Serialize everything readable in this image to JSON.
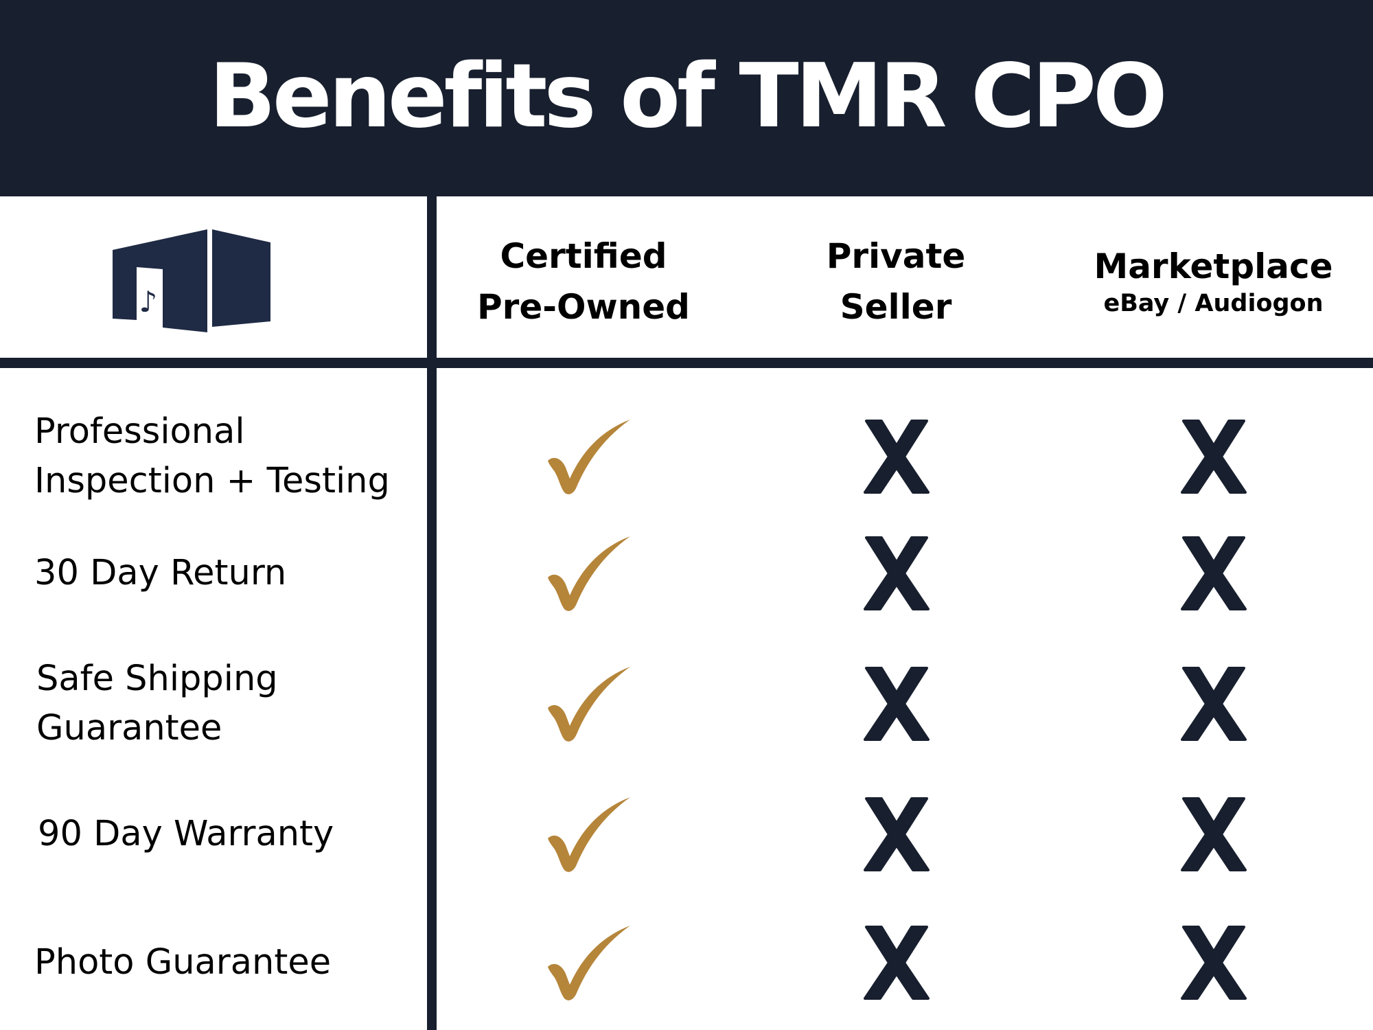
{
  "header": {
    "title": "Benefits of TMR CPO"
  },
  "logo": {
    "icon": "music-building-logo",
    "glyph": "♪"
  },
  "columns": [
    {
      "line1": "Certified",
      "line2": "Pre-Owned"
    },
    {
      "line1": "Private",
      "line2": "Seller"
    },
    {
      "main": "Marketplace",
      "sub": "eBay / Audiogon"
    }
  ],
  "rows": [
    {
      "feature": [
        "Professional",
        "Inspection + Testing"
      ],
      "marks": [
        "check",
        "x",
        "x"
      ]
    },
    {
      "feature": [
        "30 Day Return"
      ],
      "marks": [
        "check",
        "x",
        "x"
      ]
    },
    {
      "feature": [
        "Safe Shipping",
        "Guarantee"
      ],
      "marks": [
        "check",
        "x",
        "x"
      ]
    },
    {
      "feature": [
        "90 Day Warranty"
      ],
      "marks": [
        "check",
        "x",
        "x"
      ]
    },
    {
      "feature": [
        "Photo Guarantee"
      ],
      "marks": [
        "check",
        "x",
        "x"
      ]
    }
  ],
  "colors": {
    "navy": "#181f2e",
    "logo_navy": "#1f2a44",
    "check_gold": "#b5853a",
    "background": "#ffffff"
  }
}
